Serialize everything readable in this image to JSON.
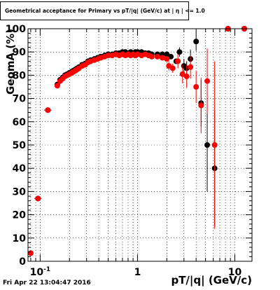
{
  "title": "Geometrical acceptance for Primary vs pT/|q| (GeV/c) at | η | <= 1.0",
  "footer_timestamp": "Fri Apr 22 13:04:47 2016",
  "chart_data": {
    "type": "scatter",
    "title": "Geometrical acceptance for Primary vs pT/|q| (GeV/c) at | η | <= 1.0",
    "xlabel": "pT/|q| (GeV/c)",
    "ylabel": "GeomA (%)",
    "xscale": "log",
    "xlim": [
      0.075,
      15
    ],
    "ylim": [
      0,
      100
    ],
    "x_tick_labels": [
      {
        "value": 0.1,
        "label": "10",
        "exp": "-1"
      },
      {
        "value": 1,
        "label": "1",
        "exp": ""
      },
      {
        "value": 10,
        "label": "10",
        "exp": ""
      }
    ],
    "y_ticks": [
      0,
      10,
      20,
      30,
      40,
      50,
      60,
      70,
      80,
      90,
      100
    ],
    "grid": true,
    "series": [
      {
        "color": "#000000",
        "points": [
          {
            "x": 0.095,
            "y": 27,
            "xerr": 0.008
          },
          {
            "x": 0.12,
            "y": 65,
            "xerr": 0.01
          },
          {
            "x": 0.15,
            "y": 76
          },
          {
            "x": 0.16,
            "y": 78
          },
          {
            "x": 0.17,
            "y": 79
          },
          {
            "x": 0.18,
            "y": 80
          },
          {
            "x": 0.19,
            "y": 80.5
          },
          {
            "x": 0.2,
            "y": 81
          },
          {
            "x": 0.21,
            "y": 81.5
          },
          {
            "x": 0.22,
            "y": 82
          },
          {
            "x": 0.23,
            "y": 82.5
          },
          {
            "x": 0.24,
            "y": 83
          },
          {
            "x": 0.25,
            "y": 83.5
          },
          {
            "x": 0.27,
            "y": 84.5
          },
          {
            "x": 0.29,
            "y": 85
          },
          {
            "x": 0.31,
            "y": 86
          },
          {
            "x": 0.33,
            "y": 86.5
          },
          {
            "x": 0.36,
            "y": 87
          },
          {
            "x": 0.39,
            "y": 87.5
          },
          {
            "x": 0.42,
            "y": 88
          },
          {
            "x": 0.46,
            "y": 88.5
          },
          {
            "x": 0.5,
            "y": 89
          },
          {
            "x": 0.55,
            "y": 89
          },
          {
            "x": 0.6,
            "y": 89.5
          },
          {
            "x": 0.65,
            "y": 89.5
          },
          {
            "x": 0.7,
            "y": 90
          },
          {
            "x": 0.75,
            "y": 90
          },
          {
            "x": 0.8,
            "y": 89.5
          },
          {
            "x": 0.85,
            "y": 90
          },
          {
            "x": 0.9,
            "y": 89.5
          },
          {
            "x": 0.95,
            "y": 90
          },
          {
            "x": 1.0,
            "y": 90
          },
          {
            "x": 1.1,
            "y": 90
          },
          {
            "x": 1.2,
            "y": 89.5
          },
          {
            "x": 1.3,
            "y": 89.5
          },
          {
            "x": 1.4,
            "y": 89
          },
          {
            "x": 1.6,
            "y": 89
          },
          {
            "x": 1.8,
            "y": 89
          },
          {
            "x": 2.0,
            "y": 89
          },
          {
            "x": 2.2,
            "y": 88
          },
          {
            "x": 2.5,
            "y": 86
          },
          {
            "x": 2.7,
            "y": 90,
            "yerr": 2
          },
          {
            "x": 3.0,
            "y": 84,
            "yerr": 3
          },
          {
            "x": 3.2,
            "y": 83,
            "yerr": 3
          },
          {
            "x": 3.5,
            "y": 87,
            "yerr": 4
          },
          {
            "x": 4.0,
            "y": 94.5,
            "yerr": 4
          },
          {
            "x": 4.5,
            "y": 68,
            "yerr": 10
          },
          {
            "x": 5.2,
            "y": 50,
            "yerr": 20
          },
          {
            "x": 6.2,
            "y": 40,
            "yerr": 25
          },
          {
            "x": 8.5,
            "y": 100
          },
          {
            "x": 12.5,
            "y": 100
          }
        ]
      },
      {
        "color": "#ff0000",
        "points": [
          {
            "x": 0.08,
            "y": 3.5
          },
          {
            "x": 0.095,
            "y": 27,
            "xerr": 0.008
          },
          {
            "x": 0.12,
            "y": 65,
            "xerr": 0.01
          },
          {
            "x": 0.15,
            "y": 75.5
          },
          {
            "x": 0.16,
            "y": 77.5
          },
          {
            "x": 0.17,
            "y": 78.5
          },
          {
            "x": 0.18,
            "y": 79.5
          },
          {
            "x": 0.19,
            "y": 80
          },
          {
            "x": 0.2,
            "y": 80.5
          },
          {
            "x": 0.21,
            "y": 81
          },
          {
            "x": 0.22,
            "y": 81.5
          },
          {
            "x": 0.23,
            "y": 82
          },
          {
            "x": 0.24,
            "y": 82.5
          },
          {
            "x": 0.25,
            "y": 83
          },
          {
            "x": 0.27,
            "y": 84
          },
          {
            "x": 0.29,
            "y": 84.5
          },
          {
            "x": 0.31,
            "y": 85.5
          },
          {
            "x": 0.33,
            "y": 86
          },
          {
            "x": 0.36,
            "y": 86.5
          },
          {
            "x": 0.39,
            "y": 87
          },
          {
            "x": 0.42,
            "y": 87.5
          },
          {
            "x": 0.46,
            "y": 88
          },
          {
            "x": 0.5,
            "y": 88.5
          },
          {
            "x": 0.55,
            "y": 88.5
          },
          {
            "x": 0.6,
            "y": 89
          },
          {
            "x": 0.65,
            "y": 88.5
          },
          {
            "x": 0.7,
            "y": 89
          },
          {
            "x": 0.75,
            "y": 88.5
          },
          {
            "x": 0.8,
            "y": 89
          },
          {
            "x": 0.85,
            "y": 88.5
          },
          {
            "x": 0.9,
            "y": 89
          },
          {
            "x": 0.95,
            "y": 88.5
          },
          {
            "x": 1.0,
            "y": 89
          },
          {
            "x": 1.1,
            "y": 88.5
          },
          {
            "x": 1.2,
            "y": 89
          },
          {
            "x": 1.3,
            "y": 88.5
          },
          {
            "x": 1.4,
            "y": 88
          },
          {
            "x": 1.6,
            "y": 88
          },
          {
            "x": 1.8,
            "y": 87.5
          },
          {
            "x": 2.0,
            "y": 87
          },
          {
            "x": 2.1,
            "y": 84,
            "yerr": 2
          },
          {
            "x": 2.3,
            "y": 83,
            "yerr": 2
          },
          {
            "x": 2.6,
            "y": 86,
            "yerr": 3
          },
          {
            "x": 2.9,
            "y": 80.5,
            "yerr": 4
          },
          {
            "x": 3.2,
            "y": 79.5,
            "yerr": 5
          },
          {
            "x": 3.5,
            "y": 83.5,
            "yerr": 5
          },
          {
            "x": 4.0,
            "y": 75,
            "yerr": 7
          },
          {
            "x": 4.5,
            "y": 67,
            "yerr": 12
          },
          {
            "x": 5.2,
            "y": 77.5,
            "yerr": 14
          },
          {
            "x": 6.2,
            "y": 50,
            "yerr": 36
          },
          {
            "x": 8.5,
            "y": 100
          },
          {
            "x": 12.5,
            "y": 100
          }
        ]
      }
    ]
  }
}
